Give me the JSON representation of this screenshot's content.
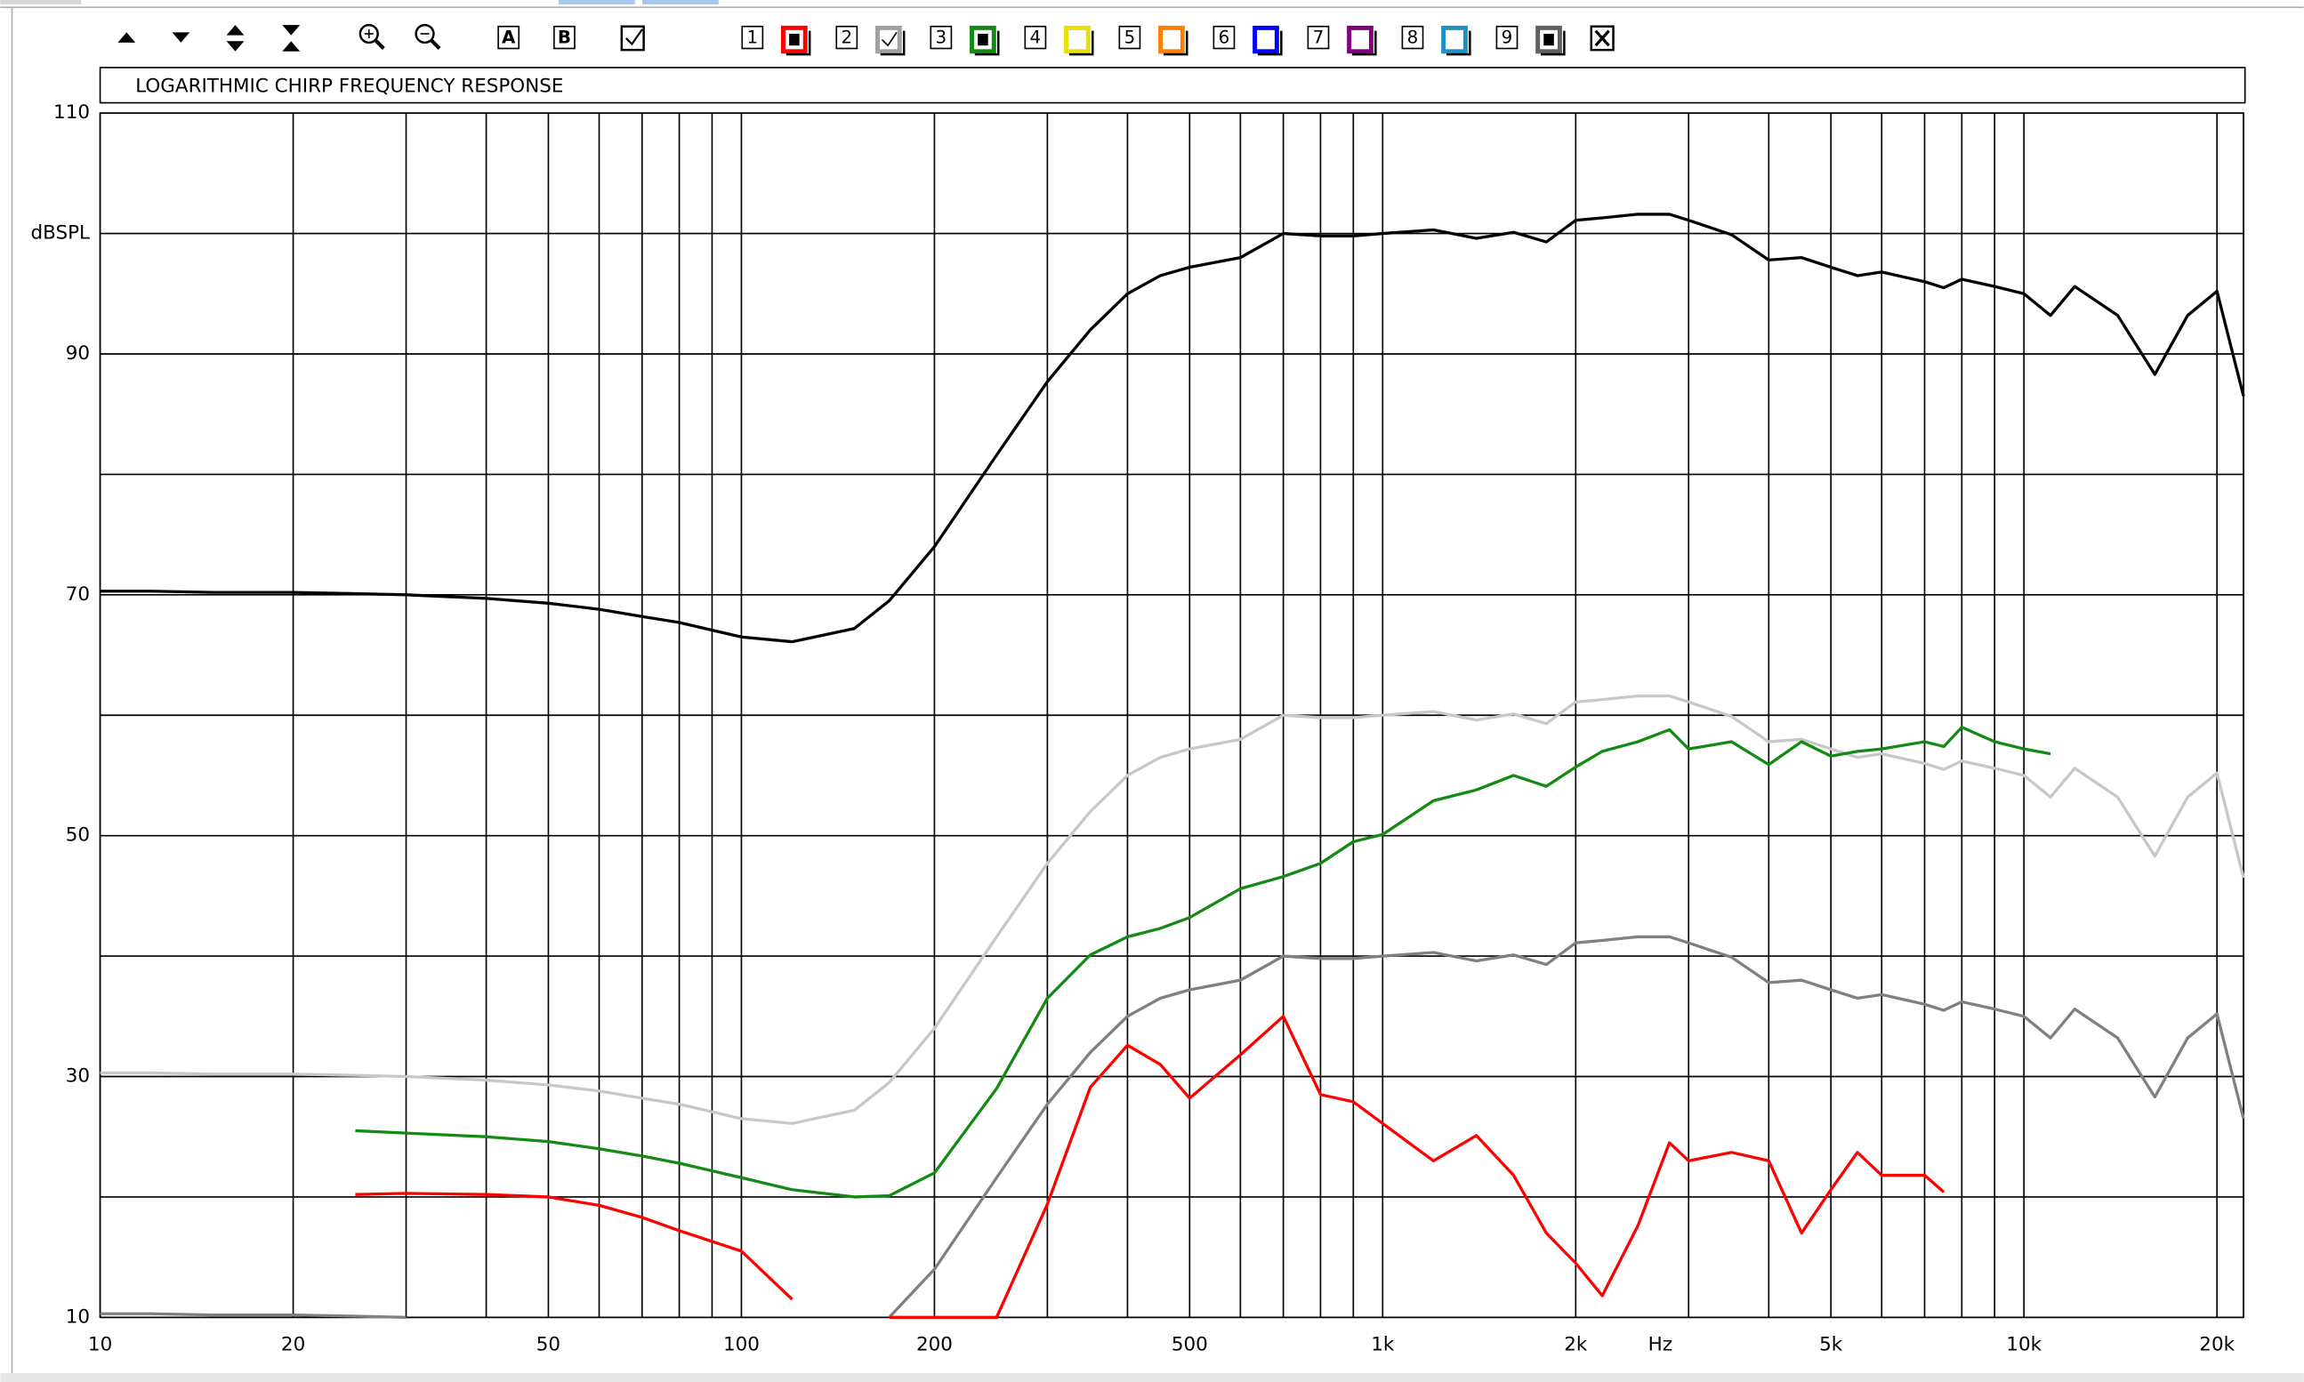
{
  "toolbar": {
    "buttons": [
      "A",
      "B"
    ],
    "channels": [
      "1",
      "2",
      "3",
      "4",
      "5",
      "6",
      "7",
      "8",
      "9"
    ]
  },
  "chart_data": {
    "type": "line",
    "title": "LOGARITHMIC CHIRP FREQUENCY RESPONSE",
    "xlabel": "Hz",
    "xscale": "log",
    "grid": true,
    "xlim": [
      10,
      22000
    ],
    "ylim": [
      10,
      110
    ],
    "xticks": [
      10,
      20,
      {
        "value": 30,
        "label": null
      },
      {
        "value": 40,
        "label": null
      },
      50,
      {
        "value": 60,
        "label": null
      },
      {
        "value": 70,
        "label": null
      },
      {
        "value": 80,
        "label": null
      },
      {
        "value": 90,
        "label": null
      },
      100,
      200,
      {
        "value": 300,
        "label": null
      },
      {
        "value": 400,
        "label": null
      },
      500,
      {
        "value": 600,
        "label": null
      },
      {
        "value": 700,
        "label": null
      },
      {
        "value": 800,
        "label": null
      },
      {
        "value": 900,
        "label": null
      },
      {
        "value": 1000,
        "label": "1k"
      },
      {
        "value": 2000,
        "label": "2k"
      },
      {
        "value": 3000,
        "label": null
      },
      {
        "value": 4000,
        "label": null
      },
      {
        "value": 5000,
        "label": "5k"
      },
      {
        "value": 6000,
        "label": null
      },
      {
        "value": 7000,
        "label": null
      },
      {
        "value": 8000,
        "label": null
      },
      {
        "value": 9000,
        "label": null
      },
      {
        "value": 10000,
        "label": "10k"
      },
      {
        "value": 20000,
        "label": "20k"
      }
    ],
    "yticks": [
      10,
      {
        "value": 20,
        "label": null
      },
      30,
      {
        "value": 40,
        "label": null
      },
      50,
      {
        "value": 60,
        "label": null
      },
      70,
      {
        "value": 80,
        "label": null
      },
      90,
      {
        "value": 100,
        "label": "dBSPL"
      },
      110
    ],
    "x": [
      10,
      12,
      15,
      20,
      25,
      30,
      40,
      50,
      60,
      70,
      80,
      100,
      120,
      150,
      170,
      200,
      250,
      300,
      350,
      400,
      450,
      500,
      600,
      700,
      800,
      900,
      1000,
      1200,
      1400,
      1600,
      1800,
      2000,
      2200,
      2500,
      2800,
      3000,
      3500,
      4000,
      4500,
      5000,
      5500,
      6000,
      7000,
      7500,
      8000,
      9000,
      10000,
      11000,
      12000,
      14000,
      16000,
      18000,
      20000,
      22000
    ],
    "series": [
      {
        "color": "#000000",
        "values": [
          70.3,
          70.3,
          70.2,
          70.2,
          70.1,
          70,
          69.7,
          69.3,
          68.8,
          68.2,
          67.7,
          66.5,
          66.1,
          67.2,
          69.5,
          74,
          81.6,
          87.7,
          92,
          95,
          96.5,
          97.2,
          98,
          100,
          99.8,
          99.8,
          100,
          100.3,
          99.6,
          100.1,
          99.3,
          101.1,
          101.3,
          101.6,
          101.6,
          101.1,
          99.9,
          97.8,
          98,
          97.2,
          96.5,
          96.8,
          96,
          95.5,
          96.2,
          95.6,
          95,
          93.2,
          95.6,
          93.2,
          88.3,
          93.2,
          95.2,
          86.5
        ]
      },
      {
        "color": "#c8c8c8",
        "values": [
          30.3,
          30.3,
          30.2,
          30.2,
          30.1,
          30,
          29.7,
          29.3,
          28.8,
          28.2,
          27.7,
          26.5,
          26.1,
          27.2,
          29.5,
          34,
          41.6,
          47.7,
          52,
          55,
          56.5,
          57.2,
          58,
          60,
          59.8,
          59.8,
          60,
          60.3,
          59.6,
          60.1,
          59.3,
          61.1,
          61.3,
          61.6,
          61.6,
          61.1,
          59.9,
          57.8,
          58,
          57.2,
          56.5,
          56.8,
          56,
          55.5,
          56.2,
          55.6,
          55,
          53.2,
          55.6,
          53.2,
          48.3,
          53.2,
          55.2,
          46.5
        ]
      },
      {
        "color": "#808080",
        "values": [
          10.3,
          10.3,
          10.2,
          10.2,
          10.1,
          10,
          null,
          null,
          null,
          null,
          null,
          null,
          null,
          null,
          10,
          14,
          21.6,
          27.7,
          32,
          35,
          36.5,
          37.2,
          38,
          40,
          39.8,
          39.8,
          40,
          40.3,
          39.6,
          40.1,
          39.3,
          41.1,
          41.3,
          41.6,
          41.6,
          41.1,
          39.9,
          37.8,
          38,
          37.2,
          36.5,
          36.8,
          36,
          35.5,
          36.2,
          35.6,
          35,
          33.2,
          35.6,
          33.2,
          28.3,
          33.2,
          35.2,
          26.5
        ]
      },
      {
        "color": "#138a13",
        "values": [
          null,
          null,
          null,
          null,
          25.5,
          25.3,
          25,
          24.6,
          24,
          23.4,
          22.8,
          21.6,
          20.6,
          20,
          20.1,
          22,
          29,
          36.5,
          40.1,
          41.6,
          42.3,
          43.2,
          45.6,
          46.6,
          47.7,
          49.5,
          50.1,
          52.9,
          53.8,
          55,
          54.1,
          55.7,
          57,
          57.8,
          58.8,
          57.2,
          57.8,
          55.9,
          57.8,
          56.6,
          57,
          57.2,
          57.8,
          57.4,
          59,
          57.8,
          57.2,
          56.8,
          null,
          null,
          null,
          null,
          null,
          null
        ]
      },
      {
        "color": "#ff0000",
        "values": [
          null,
          null,
          null,
          null,
          20.2,
          20.3,
          20.2,
          20,
          19.3,
          18.3,
          17.2,
          15.5,
          11.5,
          null,
          10,
          10,
          10,
          19.4,
          29.1,
          32.6,
          31,
          28.2,
          31.8,
          35,
          28.5,
          27.9,
          26.1,
          23,
          25.1,
          21.8,
          17,
          14.5,
          11.8,
          17.6,
          24.5,
          23,
          23.7,
          23,
          17,
          20.6,
          23.7,
          21.8,
          21.8,
          20.4,
          null,
          null,
          null,
          null,
          null,
          null,
          null,
          null,
          null,
          null
        ]
      }
    ]
  }
}
